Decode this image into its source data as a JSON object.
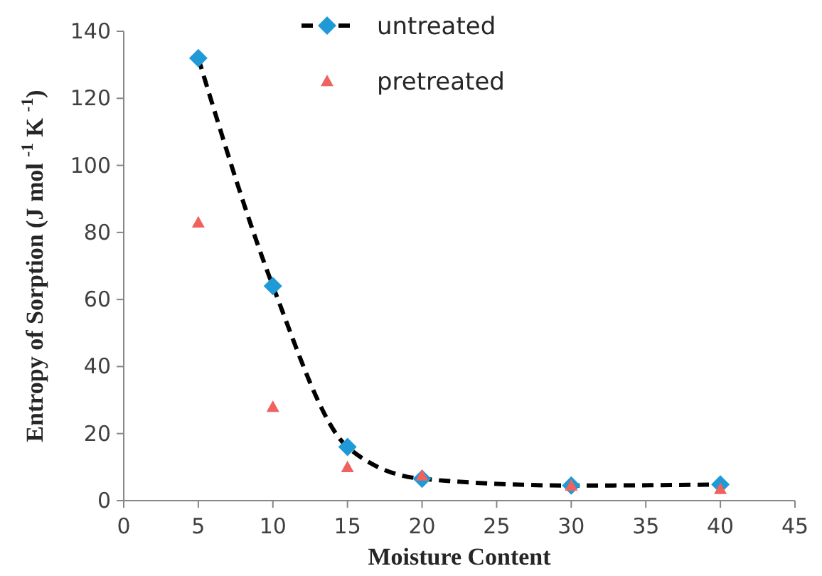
{
  "chart_data": {
    "type": "line",
    "xlabel": "Moisture Content",
    "ylabel": "Entropy of Sorption (J mol $^{-1}$ K $^{-1}$)",
    "xlim": [
      0,
      45
    ],
    "xticks": [
      0,
      5,
      10,
      15,
      20,
      25,
      30,
      35,
      40,
      45
    ],
    "ylim": [
      0,
      140
    ],
    "yticks": [
      0,
      20,
      40,
      60,
      80,
      100,
      120,
      140
    ],
    "grid": false,
    "legend": "top",
    "x": [
      5,
      10,
      15,
      20,
      30,
      40
    ],
    "series": [
      {
        "name": "untreated",
        "color": "#1f9ad6",
        "marker": "diamond",
        "line_style": "dashed",
        "values": [
          132,
          64,
          16,
          6.5,
          4.5,
          4.8
        ]
      },
      {
        "name": "pretreated",
        "type": "scatter",
        "color": "#f0625e",
        "marker": "triangle",
        "values": [
          83,
          28,
          10,
          7.5,
          4.5,
          3.5
        ]
      }
    ]
  }
}
